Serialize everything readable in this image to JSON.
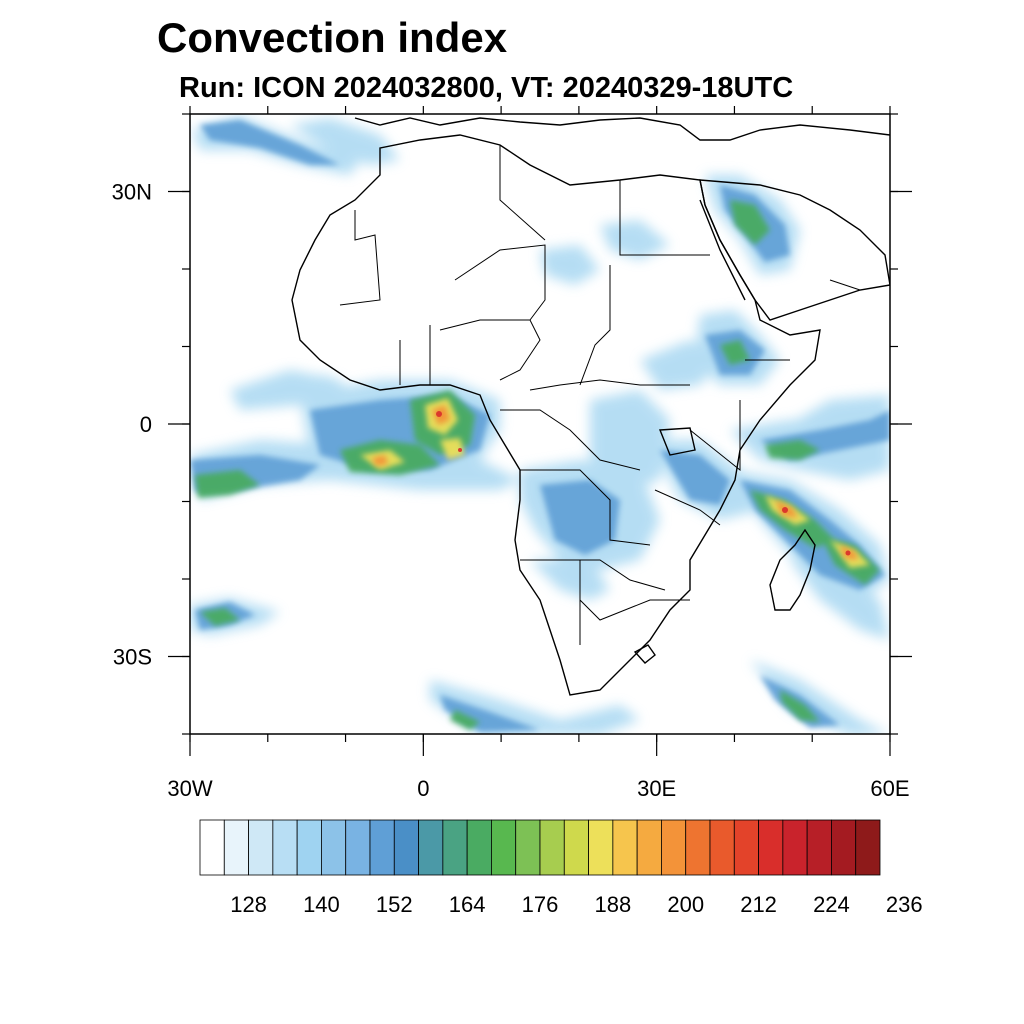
{
  "header": {
    "title": "Convection index",
    "subtitle": "Run: ICON 2024032800,  VT: 20240329-18UTC"
  },
  "map": {
    "lon_range": [
      -30,
      60
    ],
    "lat_range": [
      -40,
      40
    ],
    "x_ticks": [
      {
        "lon": -30,
        "label": "30W"
      },
      {
        "lon": 0,
        "label": "0"
      },
      {
        "lon": 30,
        "label": "30E"
      },
      {
        "lon": 60,
        "label": "60E"
      }
    ],
    "y_ticks": [
      {
        "lat": 30,
        "label": "30N"
      },
      {
        "lat": 0,
        "label": "0"
      },
      {
        "lat": -30,
        "label": "30S"
      }
    ]
  },
  "colorbar": {
    "colors": [
      "#ffffff",
      "#e8f4fb",
      "#cfe8f6",
      "#b8def4",
      "#9fd3f1",
      "#8cc2e8",
      "#79b3e3",
      "#5f9fd6",
      "#4a8fc7",
      "#4b99a7",
      "#4aa383",
      "#4aab62",
      "#58b84f",
      "#7dc155",
      "#a7cd4f",
      "#cfd94c",
      "#ede05a",
      "#f6c54d",
      "#f5aa40",
      "#f39339",
      "#ee7430",
      "#e95a2c",
      "#e3432a",
      "#d92e2b",
      "#c9232c",
      "#b71f27",
      "#a41b21",
      "#8e1a1a"
    ],
    "tick_labels": [
      "128",
      "140",
      "152",
      "164",
      "176",
      "188",
      "200",
      "212",
      "224",
      "236"
    ]
  }
}
